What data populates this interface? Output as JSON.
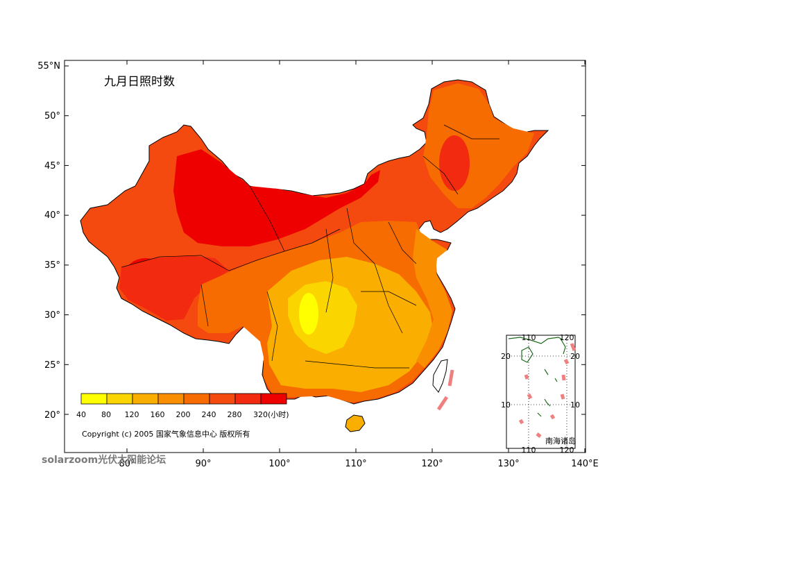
{
  "title": "九月日照时数",
  "lat_axis": {
    "ticks": [
      55,
      50,
      45,
      40,
      35,
      30,
      25,
      20
    ],
    "labels": [
      "55°N",
      "50°",
      "45°",
      "40°",
      "35°",
      "30°",
      "25°",
      "20°"
    ]
  },
  "lon_axis": {
    "ticks": [
      80,
      90,
      100,
      110,
      120,
      130,
      140
    ],
    "labels": [
      "80°",
      "90°",
      "100°",
      "110°",
      "120°",
      "130°",
      "140°E"
    ]
  },
  "legend": {
    "labels": [
      "40",
      "80",
      "120",
      "160",
      "200",
      "240",
      "280",
      "320(小时)"
    ],
    "colors": [
      "#ffff00",
      "#fbd500",
      "#f9ae00",
      "#f88e00",
      "#f66c00",
      "#f44a10",
      "#f22a10",
      "#ee0000"
    ]
  },
  "copyright": "Copyright (c) 2005  国家气象信息中心 版权所有",
  "inset": {
    "label": "南海诸岛",
    "lon_labels_top": [
      "110",
      "120"
    ],
    "lon_labels_bottom": [
      "110",
      "120"
    ],
    "lat_labels_left": [
      "20",
      "10"
    ],
    "lat_labels_right": [
      "20",
      "10"
    ]
  },
  "watermark": "solarzoom光伏太阳能论坛",
  "colors": {
    "mainland": "#f44a10",
    "northwest": "#ee0000",
    "tibet": "#f22a10",
    "south": "#f9ae00",
    "sichuan": "#ffff00",
    "coast": "#f88e00",
    "inset_coast": "#1a6b1a",
    "dash": "#f08080"
  }
}
